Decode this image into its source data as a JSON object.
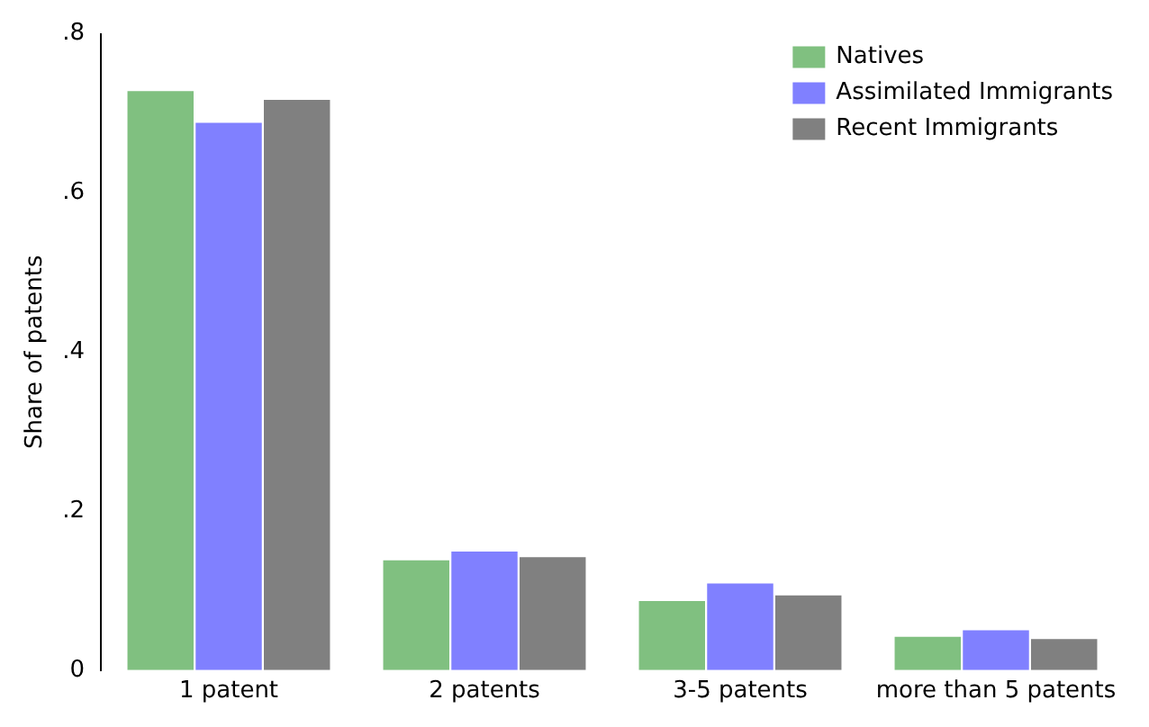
{
  "chart_data": {
    "type": "bar",
    "ylabel": "Share of patents",
    "categories": [
      "1 patent",
      "2 patents",
      "3-5 patents",
      "more than 5 patents"
    ],
    "series": [
      {
        "name": "Natives",
        "color": "#80c080",
        "values": [
          0.728,
          0.138,
          0.087,
          0.042
        ]
      },
      {
        "name": "Assimilated Immigrants",
        "color": "#8080ff",
        "values": [
          0.688,
          0.149,
          0.109,
          0.05
        ]
      },
      {
        "name": "Recent Immigrants",
        "color": "#808080",
        "values": [
          0.717,
          0.142,
          0.094,
          0.039
        ]
      }
    ],
    "ylim": [
      0,
      0.8
    ],
    "yticks": [
      {
        "value": 0,
        "label": "0"
      },
      {
        "value": 0.2,
        "label": ".2"
      },
      {
        "value": 0.4,
        "label": ".4"
      },
      {
        "value": 0.6,
        "label": ".6"
      },
      {
        "value": 0.8,
        "label": ".8"
      }
    ],
    "grid": false,
    "legend": "top right"
  }
}
